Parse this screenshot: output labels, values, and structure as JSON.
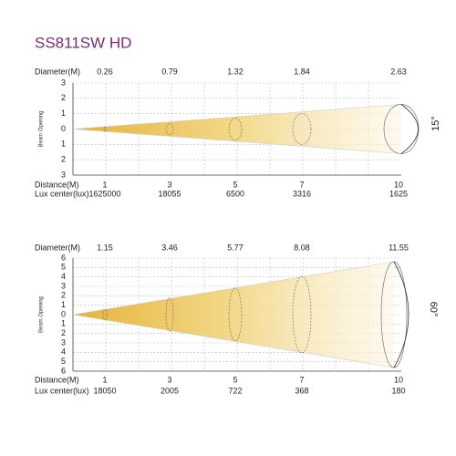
{
  "title": "SS811SW HD",
  "panels": [
    {
      "diameter_label": "Diameter(M)",
      "diameters": [
        "0.26",
        "0.79",
        "1.32",
        "1.84",
        "2.63"
      ],
      "distance_label": "Distance(M)",
      "distances": [
        "1",
        "3",
        "5",
        "7",
        "10"
      ],
      "lux_label": "Lux center(lux)",
      "lux": [
        "1625000",
        "18055",
        "6500",
        "3316",
        "1625"
      ],
      "axis_label": "Beam Opening",
      "y_labels": [
        "3",
        "2",
        "1",
        "0",
        "1",
        "2",
        "3"
      ],
      "angle": "15°"
    },
    {
      "diameter_label": "Diameter(M)",
      "diameters": [
        "1.15",
        "3.46",
        "5.77",
        "8.08",
        "11.55"
      ],
      "distance_label": "Distance(M)",
      "distances": [
        "1",
        "3",
        "5",
        "7",
        "10"
      ],
      "lux_label": "Lux center(lux)",
      "lux": [
        "18050",
        "2005",
        "722",
        "368",
        "180"
      ],
      "axis_label": "Beam Opening",
      "y_labels": [
        "6",
        "5",
        "4",
        "3",
        "2",
        "1",
        "0",
        "1",
        "2",
        "3",
        "4",
        "5",
        "6"
      ],
      "angle": "60°"
    }
  ]
}
